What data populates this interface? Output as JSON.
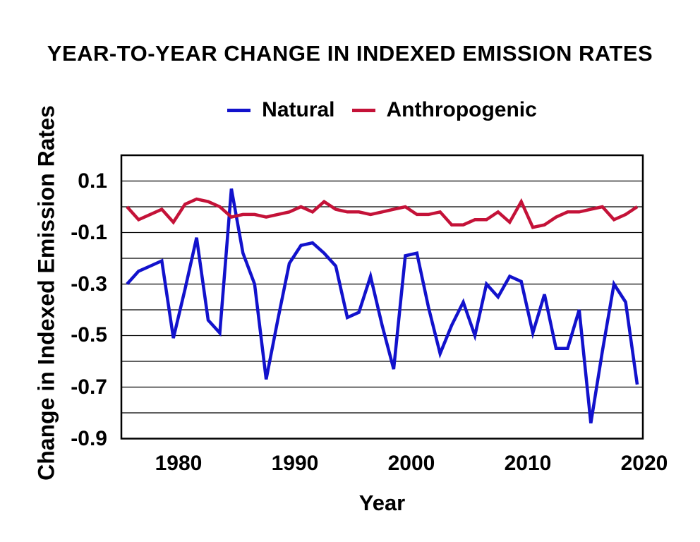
{
  "page": {
    "background": "#ffffff"
  },
  "chart_data": {
    "type": "line",
    "title": "YEAR-TO-YEAR CHANGE IN INDEXED EMISSION RATES",
    "xlabel": "Year",
    "ylabel": "Change in Indexed Emission Rates",
    "grid": true,
    "legend_position": "top-center",
    "ylim": [
      -0.9,
      0.2
    ],
    "y_gridline_step": 0.1,
    "x": [
      1976,
      1977,
      1978,
      1979,
      1980,
      1981,
      1982,
      1983,
      1984,
      1985,
      1986,
      1987,
      1988,
      1989,
      1990,
      1991,
      1992,
      1993,
      1994,
      1995,
      1996,
      1997,
      1998,
      1999,
      2000,
      2001,
      2002,
      2003,
      2004,
      2005,
      2006,
      2007,
      2008,
      2009,
      2010,
      2011,
      2012,
      2013,
      2014,
      2015,
      2016,
      2017,
      2018,
      2019,
      2020
    ],
    "series": [
      {
        "name": "Natural",
        "color": "#1212cc",
        "values": [
          -0.3,
          -0.25,
          -0.23,
          -0.21,
          -0.51,
          -0.32,
          -0.12,
          -0.44,
          -0.49,
          0.07,
          -0.18,
          -0.3,
          -0.67,
          -0.44,
          -0.22,
          -0.15,
          -0.14,
          -0.18,
          -0.23,
          -0.43,
          -0.41,
          -0.27,
          -0.46,
          -0.63,
          -0.19,
          -0.18,
          -0.39,
          -0.57,
          -0.46,
          -0.37,
          -0.5,
          -0.3,
          -0.35,
          -0.27,
          -0.29,
          -0.49,
          -0.34,
          -0.55,
          -0.55,
          -0.4,
          -0.84,
          -0.56,
          -0.3,
          -0.37,
          -0.69
        ]
      },
      {
        "name": "Anthropogenic",
        "color": "#c41238",
        "values": [
          0.0,
          -0.05,
          -0.03,
          -0.01,
          -0.06,
          0.01,
          0.03,
          0.02,
          0.0,
          -0.04,
          -0.03,
          -0.03,
          -0.04,
          -0.03,
          -0.02,
          0.0,
          -0.02,
          0.02,
          -0.01,
          -0.02,
          -0.02,
          -0.03,
          -0.02,
          -0.01,
          0.0,
          -0.03,
          -0.03,
          -0.02,
          -0.07,
          -0.07,
          -0.05,
          -0.05,
          -0.02,
          -0.06,
          0.02,
          -0.08,
          -0.07,
          -0.04,
          -0.02,
          -0.02,
          -0.01,
          0.0,
          -0.05,
          -0.03,
          0.0
        ]
      }
    ],
    "yticks": {
      "values": [
        0.1,
        -0.1,
        -0.3,
        -0.5,
        -0.7,
        -0.9
      ],
      "labels": [
        "0.1",
        "-0.1",
        "-0.3",
        "-0.5",
        "-0.7",
        "-0.9"
      ]
    },
    "xticks": {
      "values": [
        1980,
        1990,
        2000,
        2010,
        2020
      ],
      "labels": [
        "1980",
        "1990",
        "2000",
        "2010",
        "2020"
      ]
    }
  }
}
